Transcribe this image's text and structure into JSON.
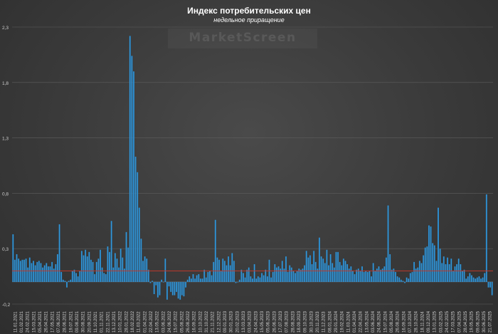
{
  "chart_data": {
    "type": "bar",
    "title": "Индекс потребительских цен",
    "subtitle": "недельное приращение",
    "watermark": "MarketScreen",
    "ylim": [
      -0.2,
      2.3
    ],
    "yticks": [
      "-0,2",
      "0,3",
      "0,8",
      "1,3",
      "1,8",
      "2,3"
    ],
    "ytick_values": [
      -0.2,
      0.3,
      0.8,
      1.3,
      1.8,
      2.3
    ],
    "grid": true,
    "bar_color": "#3aa7e6",
    "reference_line": {
      "value": 0.1,
      "color": "#c0392b"
    },
    "xtick_labels": [
      "11.01.2021",
      "01.02.2021",
      "24.02.2021",
      "15.03.2021",
      "05.04.2021",
      "26.04.2021",
      "17.05.2021",
      "07.06.2021",
      "28.06.2021",
      "19.07.2021",
      "09.08.2021",
      "30.08.2021",
      "20.09.2021",
      "11.10.2021",
      "01.11.2021",
      "22.11.2021",
      "13.12.2021",
      "10.01.2022",
      "28.01.2022",
      "18.02.2022",
      "11.03.2022",
      "01.04.2022",
      "22.04.2022",
      "13.05.2022",
      "03.06.2022",
      "24.06.2022",
      "15.07.2022",
      "05.08.2022",
      "26.08.2022",
      "16.09.2022",
      "10.10.2022",
      "31.10.2022",
      "21.11.2022",
      "12.12.2022",
      "09.01.2023",
      "30.01.2023",
      "20.02.2023",
      "13.03.2023",
      "03.04.2023",
      "24.04.2023",
      "15.05.2023",
      "05.06.2023",
      "26.06.2023",
      "17.07.2023",
      "07.08.2023",
      "28.08.2023",
      "18.09.2023",
      "09.10.2023",
      "30.10.2023",
      "20.11.2023",
      "11.12.2023",
      "08.01.2024",
      "29.01.2024",
      "19.02.2024",
      "11.03.2024",
      "01.04.2024",
      "22.04.2024",
      "13.05.2024",
      "03.06.2024",
      "24.06.2024",
      "15.07.2024",
      "05.08.2024",
      "26.08.2024",
      "16.09.2024",
      "07.10.2024",
      "28.10.2024",
      "18.11.2024",
      "09.12.2024",
      "13.01.2025",
      "03.02.2025",
      "24.02.2025",
      "17.03.2025",
      "07.04.2025",
      "28.04.2025",
      "19.05.2025",
      "09.06.2025",
      "30.06.2025",
      "21.07.2025"
    ],
    "values": [
      0.43,
      0.2,
      0.25,
      0.21,
      0.19,
      0.2,
      0.2,
      0.21,
      0.13,
      0.22,
      0.17,
      0.19,
      0.15,
      0.18,
      0.19,
      0.17,
      0.13,
      0.15,
      0.17,
      0.14,
      0.14,
      0.18,
      0.12,
      0.16,
      0.25,
      0.52,
      0.09,
      0.02,
      0.01,
      -0.05,
      0.01,
      0.02,
      0.1,
      0.11,
      0.08,
      0.05,
      0.1,
      0.28,
      0.24,
      0.29,
      0.23,
      0.27,
      0.2,
      0.18,
      0.07,
      0.18,
      0.21,
      0.29,
      0.13,
      0.08,
      0.07,
      0.32,
      0.27,
      0.55,
      0.13,
      0.26,
      0.21,
      0.13,
      0.3,
      0.22,
      0.12,
      0.45,
      0.31,
      2.22,
      2.04,
      1.9,
      1.13,
      0.99,
      0.67,
      0.39,
      0.19,
      0.23,
      0.21,
      0.11,
      -0.01,
      0.01,
      -0.11,
      -0.03,
      -0.14,
      -0.12,
      0.02,
      0.0,
      0.21,
      -0.16,
      -0.04,
      -0.09,
      -0.12,
      -0.12,
      -0.09,
      -0.15,
      -0.16,
      -0.12,
      -0.13,
      -0.05,
      0.02,
      0.05,
      0.03,
      0.07,
      0.03,
      0.06,
      0.07,
      0.03,
      0.03,
      0.11,
      0.04,
      0.09,
      0.1,
      0.06,
      0.18,
      0.56,
      0.22,
      0.2,
      0.1,
      0.21,
      0.19,
      0.15,
      0.23,
      0.15,
      0.26,
      0.19,
      -0.01,
      0.0,
      0.02,
      0.11,
      0.08,
      0.04,
      0.11,
      0.13,
      0.05,
      0.03,
      0.16,
      0.03,
      0.05,
      0.04,
      0.08,
      0.06,
      0.11,
      0.05,
      0.2,
      0.04,
      0.09,
      0.16,
      0.13,
      0.14,
      0.12,
      0.19,
      0.12,
      0.23,
      0.09,
      0.15,
      0.13,
      0.1,
      0.08,
      0.1,
      0.12,
      0.11,
      0.12,
      0.15,
      0.28,
      0.22,
      0.24,
      0.16,
      0.28,
      0.18,
      0.12,
      0.4,
      0.23,
      0.21,
      0.17,
      0.29,
      0.15,
      0.25,
      0.17,
      0.13,
      0.27,
      0.27,
      0.18,
      0.15,
      0.21,
      0.19,
      0.16,
      0.12,
      0.14,
      0.1,
      0.07,
      0.11,
      0.12,
      0.1,
      0.14,
      0.09,
      0.1,
      0.09,
      0.1,
      0.05,
      0.17,
      0.1,
      0.12,
      0.14,
      0.11,
      0.12,
      0.14,
      0.22,
      0.69,
      0.25,
      0.11,
      0.12,
      0.09,
      0.05,
      0.04,
      0.02,
      0.01,
      -0.01,
      0.04,
      0.03,
      0.08,
      0.09,
      0.18,
      0.12,
      0.13,
      0.19,
      0.17,
      0.24,
      0.31,
      0.32,
      0.51,
      0.5,
      0.35,
      0.33,
      0.19,
      0.67,
      0.3,
      0.17,
      0.23,
      0.16,
      0.22,
      0.16,
      0.21,
      0.1,
      0.14,
      0.16,
      0.21,
      0.16,
      0.1,
      0.11,
      0.03,
      0.05,
      0.08,
      0.06,
      0.04,
      0.03,
      0.04,
      0.05,
      0.03,
      0.04,
      0.08,
      0.79,
      -0.05,
      -0.05,
      -0.12
    ]
  }
}
